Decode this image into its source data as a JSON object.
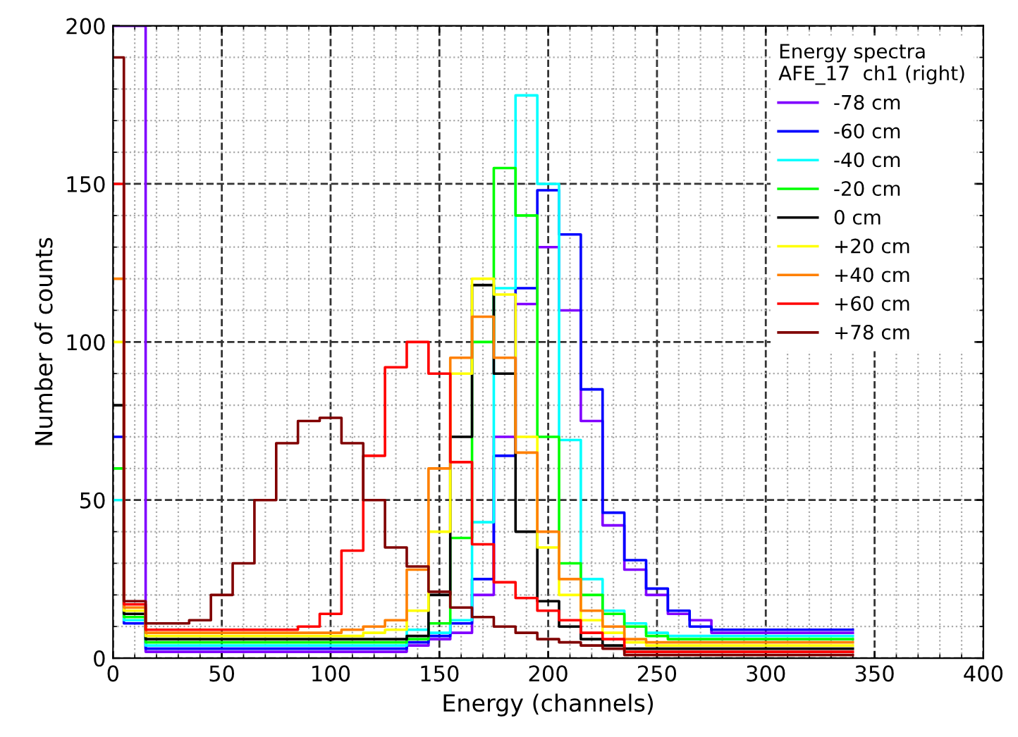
{
  "chart_data": {
    "type": "step",
    "xlabel": "Energy (channels)",
    "ylabel": "Number of counts",
    "legend_title": "Energy spectra\nAFE_17  ch1 (right)",
    "legend": "top right",
    "grid": true,
    "line_style": "solid",
    "marker": "none",
    "xlim": [
      0,
      400
    ],
    "xticks": [
      0,
      50,
      100,
      150,
      200,
      250,
      300,
      350,
      400
    ],
    "ylim": [
      0,
      200
    ],
    "yticks": [
      0,
      50,
      100,
      150,
      200
    ],
    "x": [
      0,
      10,
      20,
      30,
      40,
      50,
      60,
      70,
      80,
      90,
      100,
      110,
      120,
      130,
      140,
      150,
      160,
      170,
      180,
      190,
      200,
      210,
      220,
      230,
      240,
      250,
      260,
      270,
      280,
      290,
      300,
      310,
      320,
      330,
      340
    ],
    "series": [
      {
        "name": "-78 cm",
        "color": "#8000ff",
        "values": [
          200,
          200,
          2,
          2,
          2,
          2,
          2,
          2,
          2,
          2,
          2,
          2,
          2,
          2,
          4,
          6,
          8,
          20,
          70,
          112,
          130,
          110,
          75,
          42,
          28,
          20,
          14,
          12,
          8,
          8,
          8,
          8,
          8,
          8,
          8
        ]
      },
      {
        "name": "-60 cm",
        "color": "#0000ff",
        "values": [
          70,
          11,
          3,
          3,
          3,
          3,
          3,
          3,
          3,
          3,
          3,
          3,
          3,
          3,
          5,
          7,
          11,
          25,
          64,
          117,
          148,
          134,
          85,
          46,
          31,
          22,
          15,
          10,
          9,
          9,
          9,
          9,
          9,
          9,
          9
        ]
      },
      {
        "name": "-40 cm",
        "color": "#00ffff",
        "values": [
          50,
          12,
          4,
          4,
          4,
          4,
          4,
          4,
          4,
          4,
          4,
          4,
          4,
          4,
          9,
          8,
          12,
          43,
          117,
          178,
          150,
          69,
          25,
          15,
          11,
          8,
          7,
          7,
          7,
          7,
          7,
          7,
          7,
          7,
          7
        ]
      },
      {
        "name": "-20 cm",
        "color": "#00ff00",
        "values": [
          60,
          13,
          5,
          5,
          5,
          5,
          5,
          5,
          5,
          5,
          5,
          5,
          5,
          5,
          6,
          11,
          38,
          100,
          155,
          140,
          70,
          30,
          20,
          14,
          10,
          7,
          6,
          6,
          6,
          6,
          6,
          6,
          6,
          6,
          6
        ]
      },
      {
        "name": "0 cm",
        "color": "#000000",
        "values": [
          80,
          14,
          6,
          6,
          6,
          6,
          6,
          6,
          6,
          6,
          6,
          6,
          6,
          6,
          7,
          20,
          70,
          118,
          90,
          40,
          18,
          10,
          6,
          4,
          3,
          3,
          3,
          3,
          3,
          3,
          3,
          3,
          3,
          3,
          3
        ]
      },
      {
        "name": "+20 cm",
        "color": "#ffff00",
        "values": [
          100,
          15,
          7,
          7,
          7,
          7,
          7,
          7,
          7,
          7,
          7,
          7,
          8,
          9,
          15,
          40,
          90,
          120,
          115,
          70,
          35,
          20,
          12,
          8,
          5,
          4,
          4,
          4,
          4,
          4,
          4,
          4,
          4,
          4,
          4
        ]
      },
      {
        "name": "+40 cm",
        "color": "#ff8000",
        "values": [
          120,
          16,
          8,
          8,
          8,
          8,
          8,
          8,
          8,
          8,
          8,
          9,
          10,
          12,
          28,
          60,
          95,
          108,
          95,
          65,
          40,
          25,
          15,
          10,
          6,
          5,
          5,
          5,
          5,
          5,
          5,
          5,
          5,
          5,
          5
        ]
      },
      {
        "name": "+60 cm",
        "color": "#ff0000",
        "values": [
          150,
          17,
          9,
          9,
          9,
          9,
          9,
          9,
          9,
          10,
          14,
          34,
          64,
          92,
          100,
          90,
          62,
          36,
          24,
          19,
          15,
          12,
          8,
          6,
          2,
          2,
          2,
          2,
          2,
          2,
          2,
          2,
          2,
          2,
          2
        ]
      },
      {
        "name": "+78 cm",
        "color": "#800000",
        "values": [
          190,
          18,
          11,
          11,
          12,
          20,
          30,
          50,
          68,
          75,
          76,
          68,
          50,
          35,
          29,
          21,
          16,
          13,
          10,
          8,
          6,
          5,
          4,
          3,
          1,
          1,
          1,
          1,
          1,
          1,
          1,
          1,
          1,
          1,
          1
        ]
      }
    ]
  }
}
